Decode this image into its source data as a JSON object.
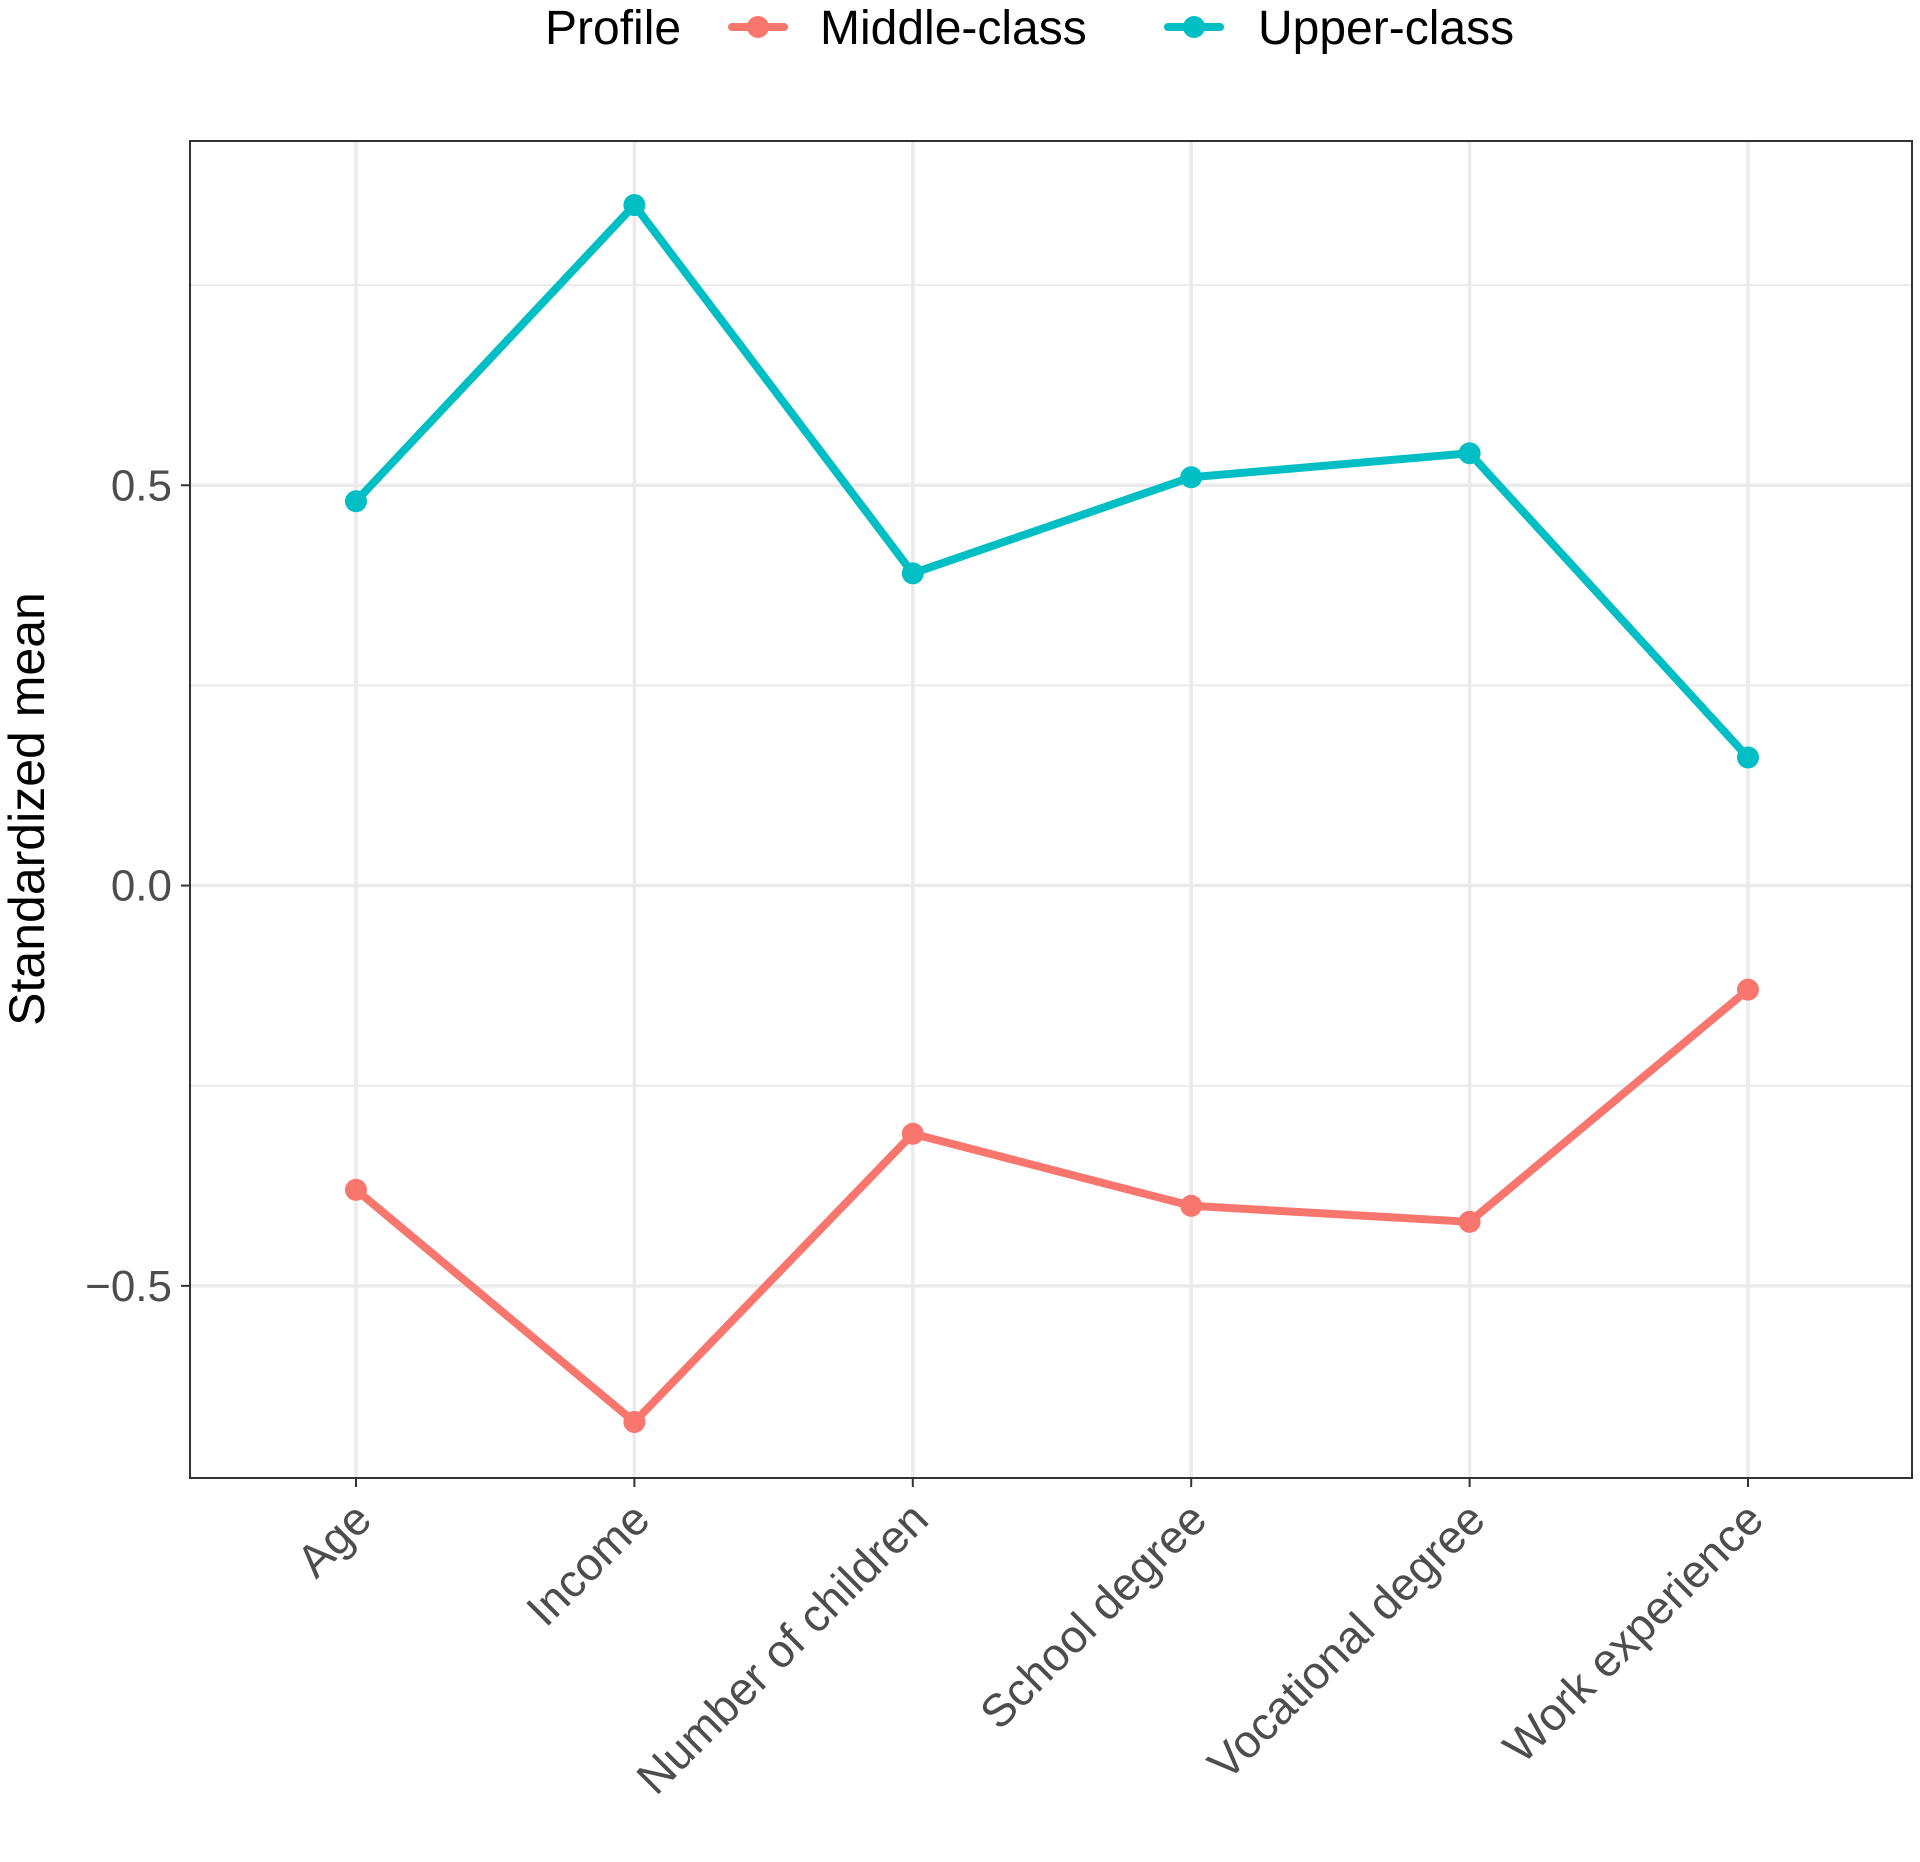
{
  "chart_data": {
    "type": "line",
    "title": "",
    "xlabel": "",
    "ylabel": "Standardized mean",
    "categories": [
      "Age",
      "Income",
      "Number of children",
      "School degree",
      "Vocational degree",
      "Work experience"
    ],
    "series": [
      {
        "name": "Middle-class",
        "color": "#F8766D",
        "values": [
          -0.38,
          -0.67,
          -0.31,
          -0.4,
          -0.42,
          -0.13
        ]
      },
      {
        "name": "Upper-class",
        "color": "#00BFC4",
        "values": [
          0.48,
          0.85,
          0.39,
          0.51,
          0.54,
          0.16
        ]
      }
    ],
    "ylim": [
      -0.74,
      0.93
    ],
    "yticks": [
      {
        "value": -0.5,
        "label": "−0.5"
      },
      {
        "value": 0.0,
        "label": "0.0"
      },
      {
        "value": 0.5,
        "label": "0.5"
      }
    ],
    "yminor": [
      -0.25,
      0.25,
      0.75
    ],
    "grid": true,
    "legend": {
      "title": "Profile",
      "position": "top"
    }
  }
}
